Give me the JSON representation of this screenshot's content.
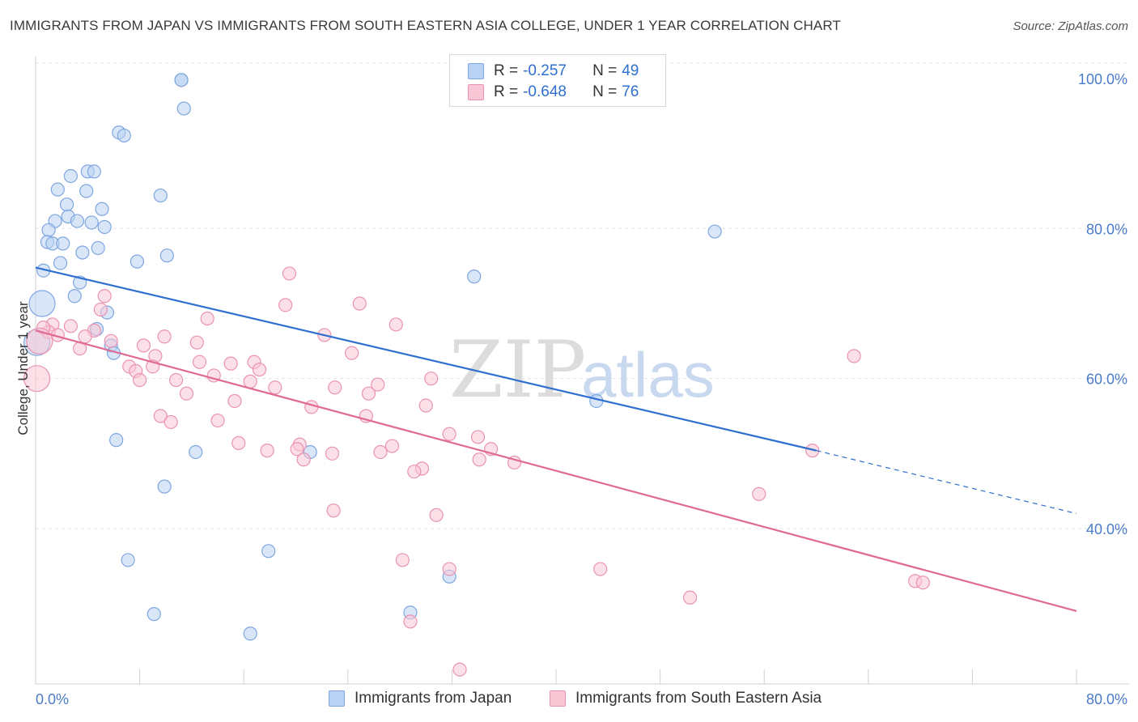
{
  "title": "IMMIGRANTS FROM JAPAN VS IMMIGRANTS FROM SOUTH EASTERN ASIA COLLEGE, UNDER 1 YEAR CORRELATION CHART",
  "source": "Source: ZipAtlas.com",
  "watermark": {
    "zip": "ZIP",
    "atlas": "atlas"
  },
  "legend": {
    "r_label": "R =",
    "n_label": "N =",
    "series": [
      {
        "name": "Immigrants from Japan",
        "r": "-0.257",
        "n": "49",
        "fill": "#b9d1f2",
        "stroke": "#7ea6e0",
        "line": "#2f6fd0"
      },
      {
        "name": "Immigrants from South Eastern Asia",
        "r": "-0.648",
        "n": "76",
        "fill": "#f9c6d6",
        "stroke": "#ea93b0",
        "line": "#e06a96"
      }
    ]
  },
  "chart_data": {
    "type": "scatter",
    "title": "IMMIGRANTS FROM JAPAN VS IMMIGRANTS FROM SOUTH EASTERN ASIA COLLEGE, UNDER 1 YEAR CORRELATION CHART",
    "xlabel": "",
    "ylabel": "College, Under 1 year",
    "xlim": [
      0,
      80
    ],
    "ylim": [
      20,
      104
    ],
    "x_tick_labels": [
      "0.0%",
      "80.0%"
    ],
    "y_ticks": [
      40,
      60,
      80,
      100
    ],
    "y_tick_labels": [
      "40.0%",
      "60.0%",
      "80.0%",
      "100.0%"
    ],
    "grid": true,
    "legend_placement": "top-center",
    "series": [
      {
        "name": "Immigrants from Japan",
        "points": [
          [
            11.2,
            99.8
          ],
          [
            11.4,
            96.0
          ],
          [
            6.4,
            92.8
          ],
          [
            6.8,
            92.4
          ],
          [
            2.7,
            87.0
          ],
          [
            4.0,
            87.6
          ],
          [
            4.5,
            87.6
          ],
          [
            1.7,
            85.2
          ],
          [
            3.9,
            85.0
          ],
          [
            9.6,
            84.4
          ],
          [
            2.4,
            83.2
          ],
          [
            5.1,
            82.6
          ],
          [
            2.5,
            81.6
          ],
          [
            3.2,
            81.0
          ],
          [
            1.5,
            81.0
          ],
          [
            4.3,
            80.8
          ],
          [
            5.3,
            80.2
          ],
          [
            1.0,
            79.8
          ],
          [
            52.2,
            79.6
          ],
          [
            0.9,
            78.2
          ],
          [
            1.3,
            78.0
          ],
          [
            2.1,
            78.0
          ],
          [
            4.8,
            77.4
          ],
          [
            3.6,
            76.8
          ],
          [
            10.1,
            76.4
          ],
          [
            7.8,
            75.6
          ],
          [
            1.9,
            75.4
          ],
          [
            0.6,
            74.4
          ],
          [
            33.7,
            73.6
          ],
          [
            3.4,
            72.8
          ],
          [
            3.0,
            71.0
          ],
          [
            0.5,
            70.0
          ],
          [
            5.5,
            68.8
          ],
          [
            4.7,
            66.6
          ],
          [
            5.8,
            64.4
          ],
          [
            6.0,
            63.4
          ],
          [
            0.1,
            64.8
          ],
          [
            43.1,
            57.0
          ],
          [
            6.2,
            51.8
          ],
          [
            12.3,
            50.2
          ],
          [
            21.1,
            50.2
          ],
          [
            9.9,
            45.6
          ],
          [
            17.9,
            37.0
          ],
          [
            7.1,
            35.8
          ],
          [
            31.8,
            33.6
          ],
          [
            9.1,
            28.6
          ],
          [
            28.8,
            28.8
          ],
          [
            16.5,
            26.0
          ],
          [
            11.2,
            99.8
          ]
        ]
      },
      {
        "name": "Immigrants from South Eastern Asia",
        "points": [
          [
            19.5,
            74.0
          ],
          [
            19.2,
            69.8
          ],
          [
            24.9,
            70.0
          ],
          [
            5.3,
            71.0
          ],
          [
            5.0,
            69.2
          ],
          [
            13.2,
            68.0
          ],
          [
            27.7,
            67.2
          ],
          [
            1.3,
            67.2
          ],
          [
            2.7,
            67.0
          ],
          [
            4.5,
            66.4
          ],
          [
            1.0,
            66.2
          ],
          [
            0.6,
            66.8
          ],
          [
            1.7,
            65.8
          ],
          [
            22.2,
            65.8
          ],
          [
            3.8,
            65.6
          ],
          [
            9.9,
            65.6
          ],
          [
            5.8,
            65.0
          ],
          [
            8.3,
            64.4
          ],
          [
            12.4,
            64.8
          ],
          [
            3.4,
            64.0
          ],
          [
            24.3,
            63.4
          ],
          [
            9.2,
            63.0
          ],
          [
            62.9,
            63.0
          ],
          [
            12.6,
            62.2
          ],
          [
            15.0,
            62.0
          ],
          [
            16.8,
            62.2
          ],
          [
            7.2,
            61.6
          ],
          [
            9.0,
            61.6
          ],
          [
            7.7,
            61.0
          ],
          [
            17.2,
            61.2
          ],
          [
            13.7,
            60.4
          ],
          [
            0.1,
            60.0
          ],
          [
            8.0,
            59.8
          ],
          [
            10.8,
            59.8
          ],
          [
            16.5,
            59.6
          ],
          [
            30.4,
            60.0
          ],
          [
            18.4,
            58.8
          ],
          [
            23.0,
            58.8
          ],
          [
            26.3,
            59.2
          ],
          [
            25.6,
            58.0
          ],
          [
            11.6,
            58.0
          ],
          [
            15.3,
            57.0
          ],
          [
            21.2,
            56.2
          ],
          [
            30.0,
            56.4
          ],
          [
            9.6,
            55.0
          ],
          [
            25.4,
            55.0
          ],
          [
            14.0,
            54.4
          ],
          [
            10.4,
            54.2
          ],
          [
            31.8,
            52.6
          ],
          [
            34.0,
            52.2
          ],
          [
            15.6,
            51.4
          ],
          [
            27.4,
            51.0
          ],
          [
            20.3,
            51.2
          ],
          [
            20.1,
            50.6
          ],
          [
            17.8,
            50.4
          ],
          [
            26.5,
            50.2
          ],
          [
            35.0,
            50.6
          ],
          [
            22.8,
            50.0
          ],
          [
            59.7,
            50.4
          ],
          [
            20.6,
            49.2
          ],
          [
            34.1,
            49.2
          ],
          [
            36.8,
            48.8
          ],
          [
            29.7,
            48.0
          ],
          [
            29.1,
            47.6
          ],
          [
            55.6,
            44.6
          ],
          [
            22.9,
            42.4
          ],
          [
            30.8,
            41.8
          ],
          [
            28.2,
            35.8
          ],
          [
            31.8,
            34.6
          ],
          [
            43.4,
            34.6
          ],
          [
            67.6,
            33.0
          ],
          [
            68.2,
            32.8
          ],
          [
            50.3,
            30.8
          ],
          [
            28.8,
            27.6
          ],
          [
            32.6,
            21.2
          ],
          [
            0.3,
            65.0
          ]
        ]
      }
    ],
    "trend_lines": [
      {
        "series": "Immigrants from Japan",
        "x": [
          0,
          60.0
        ],
        "y": [
          74.8,
          50.4
        ],
        "dashed_extension_to": [
          80,
          42.0
        ]
      },
      {
        "series": "Immigrants from South Eastern Asia",
        "x": [
          0,
          80
        ],
        "y": [
          66.4,
          29.0
        ]
      }
    ]
  }
}
